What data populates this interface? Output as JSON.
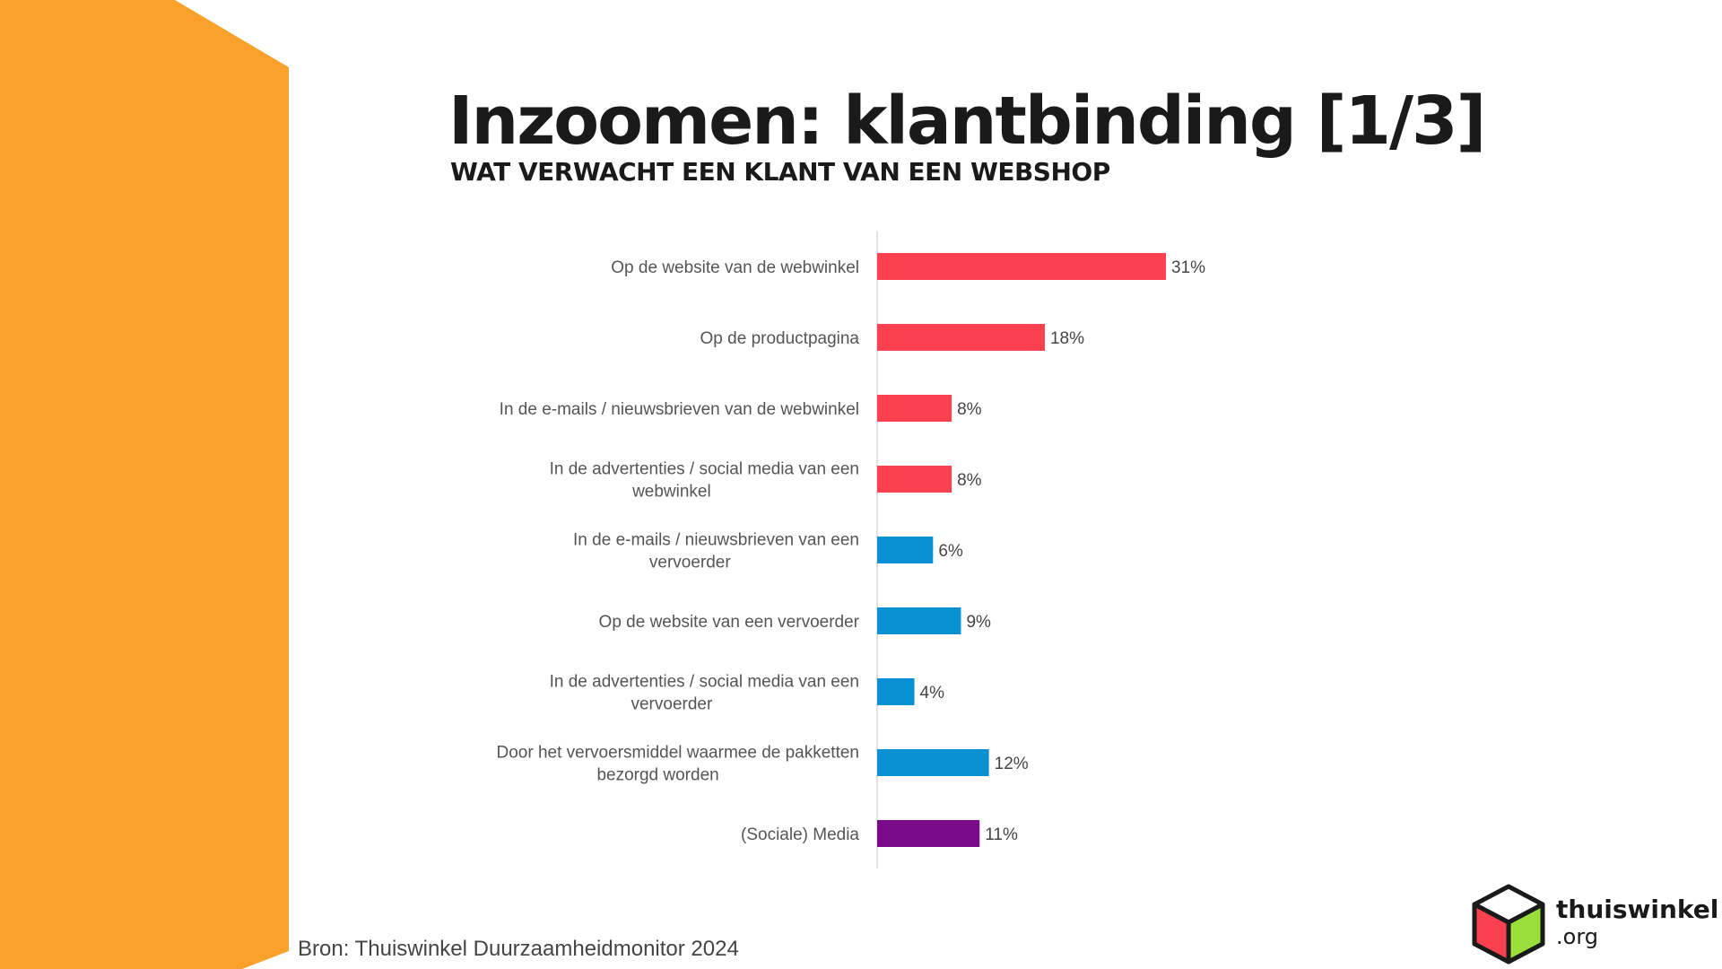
{
  "header": {
    "title": "Inzoomen: klantbinding [1/3]",
    "subtitle": "WAT VERWACHT EEN KLANT VAN EEN WEBSHOP"
  },
  "footer": {
    "source": "Bron: Thuiswinkel Duurzaamheidmonitor 2024"
  },
  "logo": {
    "name": "thuiswinkel",
    "suffix": ".org",
    "icon": "cube-logo-icon"
  },
  "colors": {
    "side_shape": "#F9A12A",
    "red": "#FB404F",
    "blue": "#0A91D3",
    "purple": "#7A0B8B",
    "label_text": "#555555"
  },
  "chart_data": {
    "type": "bar",
    "orientation": "horizontal",
    "title": "Inzoomen: klantbinding [1/3]",
    "subtitle": "WAT VERWACHT EEN KLANT VAN EEN WEBSHOP",
    "xlabel": "",
    "ylabel": "",
    "xlim": [
      0,
      31
    ],
    "grid": false,
    "categories": [
      "Op de website van de webwinkel",
      "Op de productpagina",
      "In de e-mails / nieuwsbrieven van de webwinkel",
      "In de advertenties / social media van een webwinkel",
      "In de e-mails / nieuwsbrieven van een vervoerder",
      "Op de website van een vervoerder",
      "In de advertenties / social media van een vervoerder",
      "Door het vervoersmiddel waarmee de pakketten bezorgd worden",
      "(Sociale) Media"
    ],
    "values": [
      31,
      18,
      8,
      8,
      6,
      9,
      4,
      12,
      11
    ],
    "value_labels": [
      "31%",
      "18%",
      "8%",
      "8%",
      "6%",
      "9%",
      "4%",
      "12%",
      "11%"
    ],
    "bar_colors": [
      "#FB404F",
      "#FB404F",
      "#FB404F",
      "#FB404F",
      "#0A91D3",
      "#0A91D3",
      "#0A91D3",
      "#0A91D3",
      "#7A0B8B"
    ],
    "label_lines": [
      [
        "Op de website van de webwinkel"
      ],
      [
        "Op de productpagina"
      ],
      [
        "In de e-mails / nieuwsbrieven van de webwinkel"
      ],
      [
        "In de advertenties / social media van een",
        "webwinkel"
      ],
      [
        "In de e-mails / nieuwsbrieven van een",
        "vervoerder"
      ],
      [
        "Op de website van een vervoerder"
      ],
      [
        "In de advertenties / social media van een",
        "vervoerder"
      ],
      [
        "Door het vervoersmiddel waarmee de pakketten",
        "bezorgd worden"
      ],
      [
        "(Sociale) Media"
      ]
    ]
  }
}
